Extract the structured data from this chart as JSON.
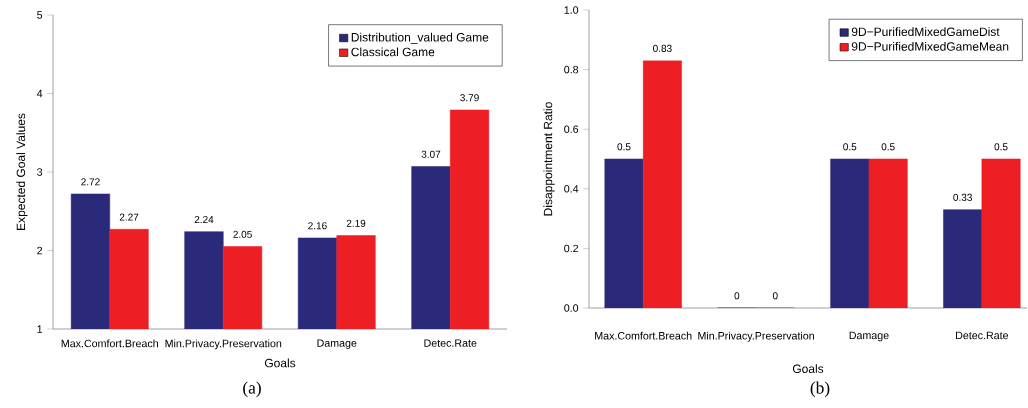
{
  "chart_data": [
    {
      "type": "bar",
      "xlabel": "Goals",
      "ylabel": "Expected Goal Values",
      "categories": [
        "Max.Comfort.Breach",
        "Min.Privacy.Preservation",
        "Damage",
        "Detec.Rate"
      ],
      "series": [
        {
          "name": "Distribution_valued Game",
          "color": "#2b2a7a",
          "values": [
            2.72,
            2.24,
            2.16,
            3.07
          ]
        },
        {
          "name": "Classical Game",
          "color": "#ee1e25",
          "values": [
            2.27,
            2.05,
            2.19,
            3.79
          ]
        }
      ],
      "ylim": [
        1,
        5
      ],
      "yticks": [
        1,
        2,
        3,
        4,
        5
      ],
      "data_labels": true,
      "legend": "top right",
      "annotations": [
        "(a)"
      ]
    },
    {
      "type": "bar",
      "xlabel": "Goals",
      "ylabel": "Disappointment Ratio",
      "categories": [
        "Max.Comfort.Breach",
        "Min.Privacy.Preservation",
        "Damage",
        "Detec.Rate"
      ],
      "series": [
        {
          "name": "9D−PurifiedMixedGameDist",
          "color": "#2b2a7a",
          "values": [
            0.5,
            0,
            0.5,
            0.33
          ]
        },
        {
          "name": "9D−PurifiedMixedGameMean",
          "color": "#ee1e25",
          "values": [
            0.83,
            0,
            0.5,
            0.5
          ]
        }
      ],
      "ylim": [
        0,
        1
      ],
      "yticks": [
        {
          "value": 0,
          "label": "0.0"
        },
        {
          "value": 0.2,
          "label": "0.2"
        },
        {
          "value": 0.4,
          "label": "0.4"
        },
        {
          "value": 0.6,
          "label": "0.6"
        },
        {
          "value": 0.8,
          "label": "0.8"
        },
        {
          "value": 1,
          "label": "1.0"
        }
      ],
      "data_labels": true,
      "legend": "top right",
      "annotations": [
        "(b)"
      ]
    }
  ]
}
